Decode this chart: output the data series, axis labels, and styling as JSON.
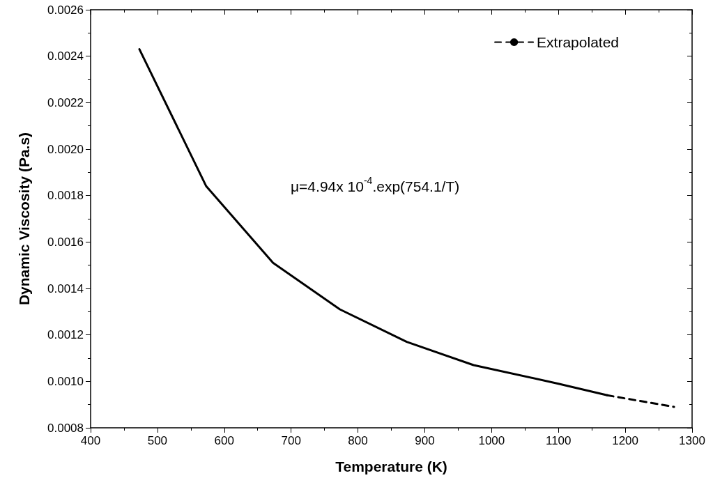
{
  "chart_data": {
    "type": "line",
    "xlabel": "Temperature (K)",
    "ylabel": "Dynamic Viscosity (Pa.s)",
    "annotations": [
      "μ=4.94x 10$^{-4}$.exp(754.1/T)"
    ],
    "series": [
      {
        "color": "#000000",
        "line_style": "solid",
        "x": [
          473,
          573,
          673,
          773,
          873,
          973,
          1100,
          1173
        ],
        "values": [
          0.00243,
          0.00184,
          0.00151,
          0.00131,
          0.00117,
          0.00107,
          0.00099,
          0.00094
        ]
      },
      {
        "name": "Extrapolated",
        "color": "#000000",
        "line_style": "dashed",
        "x": [
          1173,
          1273
        ],
        "values": [
          0.00094,
          0.00089
        ]
      }
    ],
    "xlim": [
      400,
      1300
    ],
    "xticks": [
      400,
      500,
      600,
      700,
      800,
      900,
      1000,
      1100,
      1200,
      1300
    ],
    "ylim": [
      0.0008,
      0.0026
    ],
    "yticks": [
      {
        "value": 0.0008,
        "label": "0.0008"
      },
      {
        "value": 0.001,
        "label": "0.0010"
      },
      {
        "value": 0.0012,
        "label": "0.0012"
      },
      {
        "value": 0.0014,
        "label": "0.0014"
      },
      {
        "value": 0.0016,
        "label": "0.0016"
      },
      {
        "value": 0.0018,
        "label": "0.0018"
      },
      {
        "value": 0.002,
        "label": "0.0020"
      },
      {
        "value": 0.0022,
        "label": "0.0022"
      },
      {
        "value": 0.0024,
        "label": "0.0024"
      },
      {
        "value": 0.0026,
        "label": "0.0026"
      }
    ],
    "marker": "none",
    "grid": false,
    "legend": "top right"
  }
}
